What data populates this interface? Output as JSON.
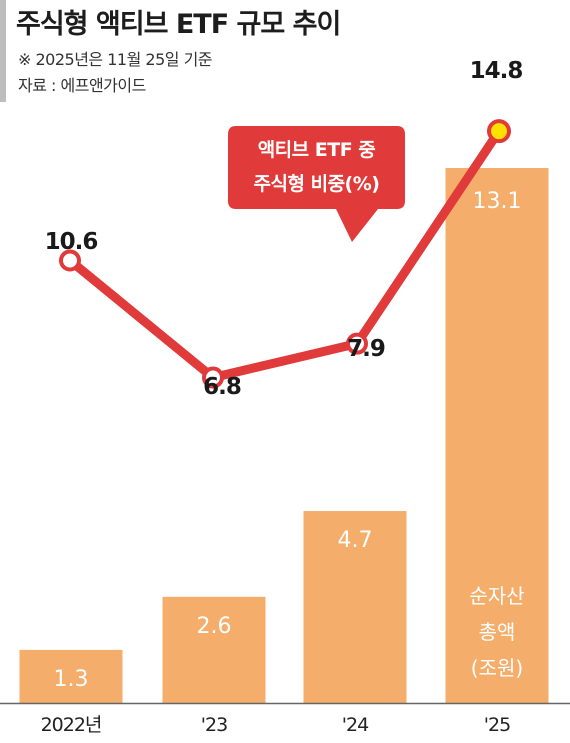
{
  "title": "주식형 액티브 ETF 규모 추이",
  "note": "※ 2025년은 11월 25일 기준",
  "source": "자료 : 에프앤가이드",
  "chart_data": {
    "type": "bar",
    "categories": [
      "2022년",
      "'23",
      "'24",
      "'25"
    ],
    "series": [
      {
        "type": "bar",
        "values": [
          1.3,
          2.6,
          4.7,
          13.1
        ],
        "value_labels": [
          "1.3",
          "2.6",
          "4.7",
          "13.1"
        ],
        "unit_label_lines": [
          "순자산",
          "총액",
          "(조원)"
        ],
        "color": "#f4ad6a"
      },
      {
        "type": "line",
        "values": [
          10.6,
          6.8,
          7.9,
          14.8
        ],
        "value_labels": [
          "10.6",
          "6.8",
          "7.9",
          "14.8"
        ],
        "callout_lines": [
          "액티브 ETF 중",
          "주식형 비중(%)"
        ],
        "color": "#e03a3a",
        "highlight_color": "#ffe100"
      }
    ]
  }
}
